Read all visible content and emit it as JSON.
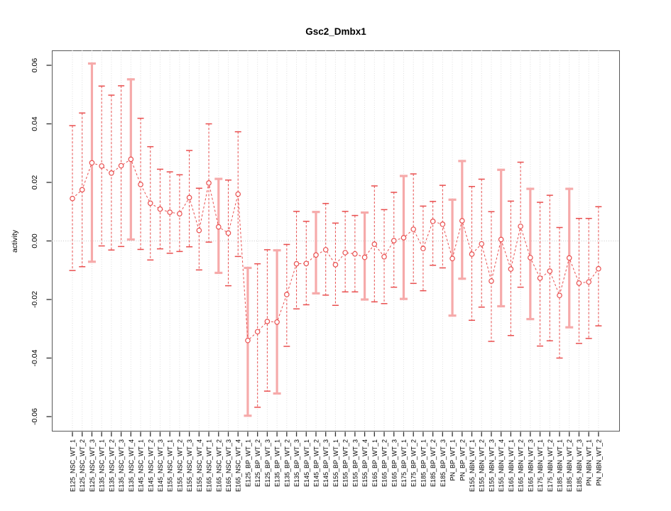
{
  "chart_data": {
    "type": "line",
    "title": "Gsc2_Dmbx1",
    "xlabel": "",
    "ylabel": "activity",
    "ylim": [
      -0.065,
      0.065
    ],
    "ytick_values": [
      0.06,
      0.04,
      0.02,
      0.0,
      -0.02,
      -0.04,
      -0.06
    ],
    "ytick_labels": [
      "0.06",
      "0.04",
      "0.02",
      "0.00",
      "-0.02",
      "-0.04",
      "-0.06"
    ],
    "grid": "dotted vertical gridline per category, dotted horizontal line at zero",
    "legend_position": "none",
    "marker": "open-circle",
    "line_style": "dashed",
    "x_tick_label_rotation": 90,
    "points": [
      {
        "label": "E125_NSC_WT_1",
        "value": 0.0145,
        "lo": -0.0101,
        "hi": 0.0394,
        "thick": false
      },
      {
        "label": "E125_NSC_WT_2",
        "value": 0.0175,
        "lo": -0.0088,
        "hi": 0.0437,
        "thick": false
      },
      {
        "label": "E125_NSC_WT_3",
        "value": 0.0267,
        "lo": -0.0071,
        "hi": 0.0606,
        "thick": true
      },
      {
        "label": "E135_NSC_WT_1",
        "value": 0.0256,
        "lo": -0.0017,
        "hi": 0.0529,
        "thick": false
      },
      {
        "label": "E135_NSC_WT_2",
        "value": 0.0232,
        "lo": -0.0031,
        "hi": 0.0498,
        "thick": false
      },
      {
        "label": "E135_NSC_WT_3",
        "value": 0.0257,
        "lo": -0.0019,
        "hi": 0.053,
        "thick": false
      },
      {
        "label": "E135_NSC_WT_4",
        "value": 0.0279,
        "lo": 0.0005,
        "hi": 0.0552,
        "thick": true
      },
      {
        "label": "E145_NSC_WT_1",
        "value": 0.0193,
        "lo": -0.0029,
        "hi": 0.0419,
        "thick": false
      },
      {
        "label": "E145_NSC_WT_2",
        "value": 0.0129,
        "lo": -0.0065,
        "hi": 0.0322,
        "thick": false
      },
      {
        "label": "E145_NSC_WT_3",
        "value": 0.0109,
        "lo": -0.0027,
        "hi": 0.0245,
        "thick": false
      },
      {
        "label": "E155_NSC_WT_1",
        "value": 0.0098,
        "lo": -0.0042,
        "hi": 0.0236,
        "thick": false
      },
      {
        "label": "E155_NSC_WT_2",
        "value": 0.0093,
        "lo": -0.0036,
        "hi": 0.0226,
        "thick": false
      },
      {
        "label": "E155_NSC_WT_3",
        "value": 0.0148,
        "lo": -0.002,
        "hi": 0.0309,
        "thick": false
      },
      {
        "label": "E155_NSC_WT_4",
        "value": 0.0036,
        "lo": -0.0099,
        "hi": 0.018,
        "thick": false
      },
      {
        "label": "E165_NSC_WT_1",
        "value": 0.0198,
        "lo": -0.0004,
        "hi": 0.04,
        "thick": false
      },
      {
        "label": "E165_NSC_WT_2",
        "value": 0.0048,
        "lo": -0.0109,
        "hi": 0.0212,
        "thick": true
      },
      {
        "label": "E165_NSC_WT_3",
        "value": 0.0027,
        "lo": -0.0153,
        "hi": 0.0208,
        "thick": false
      },
      {
        "label": "E165_NSC_WT_4",
        "value": 0.016,
        "lo": -0.0053,
        "hi": 0.0373,
        "thick": false
      },
      {
        "label": "E125_BP_WT_1",
        "value": -0.034,
        "lo": -0.0597,
        "hi": -0.0092,
        "thick": true
      },
      {
        "label": "E125_BP_WT_2",
        "value": -0.031,
        "lo": -0.0568,
        "hi": -0.0078,
        "thick": false
      },
      {
        "label": "E125_BP_WT_3",
        "value": -0.0275,
        "lo": -0.0513,
        "hi": -0.003,
        "thick": false
      },
      {
        "label": "E135_BP_WT_1",
        "value": -0.0277,
        "lo": -0.0521,
        "hi": -0.0032,
        "thick": true
      },
      {
        "label": "E135_BP_WT_2",
        "value": -0.0183,
        "lo": -0.036,
        "hi": -0.0012,
        "thick": false
      },
      {
        "label": "E135_BP_WT_3",
        "value": -0.0078,
        "lo": -0.0232,
        "hi": 0.0101,
        "thick": false
      },
      {
        "label": "E145_BP_WT_1",
        "value": -0.0077,
        "lo": -0.0218,
        "hi": 0.0067,
        "thick": false
      },
      {
        "label": "E145_BP_WT_2",
        "value": -0.0048,
        "lo": -0.0179,
        "hi": 0.0099,
        "thick": true
      },
      {
        "label": "E145_BP_WT_3",
        "value": -0.003,
        "lo": -0.0185,
        "hi": 0.0128,
        "thick": false
      },
      {
        "label": "E155_BP_WT_1",
        "value": -0.0081,
        "lo": -0.022,
        "hi": 0.0061,
        "thick": false
      },
      {
        "label": "E155_BP_WT_2",
        "value": -0.004,
        "lo": -0.0174,
        "hi": 0.0101,
        "thick": false
      },
      {
        "label": "E155_BP_WT_3",
        "value": -0.0044,
        "lo": -0.0174,
        "hi": 0.0087,
        "thick": false
      },
      {
        "label": "E155_BP_WT_4",
        "value": -0.0056,
        "lo": -0.02,
        "hi": 0.0097,
        "thick": true
      },
      {
        "label": "E165_BP_WT_1",
        "value": -0.0011,
        "lo": -0.0208,
        "hi": 0.0188,
        "thick": false
      },
      {
        "label": "E165_BP_WT_2",
        "value": -0.0054,
        "lo": -0.0214,
        "hi": 0.0107,
        "thick": false
      },
      {
        "label": "E165_BP_WT_3",
        "value": 0.0001,
        "lo": -0.0158,
        "hi": 0.0166,
        "thick": false
      },
      {
        "label": "E175_BP_WT_1",
        "value": 0.0011,
        "lo": -0.0198,
        "hi": 0.0222,
        "thick": true
      },
      {
        "label": "E175_BP_WT_2",
        "value": 0.004,
        "lo": -0.0145,
        "hi": 0.0229,
        "thick": false
      },
      {
        "label": "E185_BP_WT_1",
        "value": -0.0026,
        "lo": -0.017,
        "hi": 0.0119,
        "thick": false
      },
      {
        "label": "E185_BP_WT_2",
        "value": 0.0067,
        "lo": -0.0083,
        "hi": 0.0135,
        "thick": false
      },
      {
        "label": "E185_BP_WT_3",
        "value": 0.0057,
        "lo": -0.0092,
        "hi": 0.019,
        "thick": false
      },
      {
        "label": "PN_BP_WT_1",
        "value": -0.006,
        "lo": -0.0255,
        "hi": 0.0141,
        "thick": true
      },
      {
        "label": "PN_BP_WT_2",
        "value": 0.0069,
        "lo": -0.0129,
        "hi": 0.0273,
        "thick": true
      },
      {
        "label": "E155_NBN_WT_1",
        "value": -0.0045,
        "lo": -0.0271,
        "hi": 0.0186,
        "thick": false
      },
      {
        "label": "E155_NBN_WT_2",
        "value": -0.001,
        "lo": -0.0226,
        "hi": 0.0211,
        "thick": false
      },
      {
        "label": "E155_NBN_WT_3",
        "value": -0.0137,
        "lo": -0.0343,
        "hi": 0.01,
        "thick": false
      },
      {
        "label": "E155_NBN_WT_4",
        "value": 0.0005,
        "lo": -0.0223,
        "hi": 0.0243,
        "thick": true
      },
      {
        "label": "E165_NBN_WT_1",
        "value": -0.0096,
        "lo": -0.0323,
        "hi": 0.0136,
        "thick": false
      },
      {
        "label": "E165_NBN_WT_2",
        "value": 0.005,
        "lo": -0.0158,
        "hi": 0.0269,
        "thick": false
      },
      {
        "label": "E165_NBN_WT_3",
        "value": -0.0057,
        "lo": -0.0267,
        "hi": 0.0178,
        "thick": true
      },
      {
        "label": "E175_NBN_WT_1",
        "value": -0.0127,
        "lo": -0.0359,
        "hi": 0.0132,
        "thick": false
      },
      {
        "label": "E175_NBN_WT_2",
        "value": -0.0103,
        "lo": -0.0341,
        "hi": 0.0156,
        "thick": false
      },
      {
        "label": "E185_NBN_WT_1",
        "value": -0.0186,
        "lo": -0.04,
        "hi": 0.0046,
        "thick": false
      },
      {
        "label": "E185_NBN_WT_2",
        "value": -0.0058,
        "lo": -0.0295,
        "hi": 0.0178,
        "thick": true
      },
      {
        "label": "E185_NBN_WT_3",
        "value": -0.0144,
        "lo": -0.035,
        "hi": 0.0077,
        "thick": false
      },
      {
        "label": "PN_NBN_WT_1",
        "value": -0.014,
        "lo": -0.0333,
        "hi": 0.0077,
        "thick": false
      },
      {
        "label": "PN_NBN_WT_2",
        "value": -0.0095,
        "lo": -0.029,
        "hi": 0.0117,
        "thick": false
      }
    ]
  },
  "colors": {
    "series_red": "#e94e4e",
    "pale_bar_pink": "#f6aaaa",
    "gridline": "#dedede",
    "zero_line": "#c9c9c9",
    "box_border": "#585858",
    "tick": "#2f2f2f",
    "text": "#000000",
    "background": "#ffffff"
  }
}
